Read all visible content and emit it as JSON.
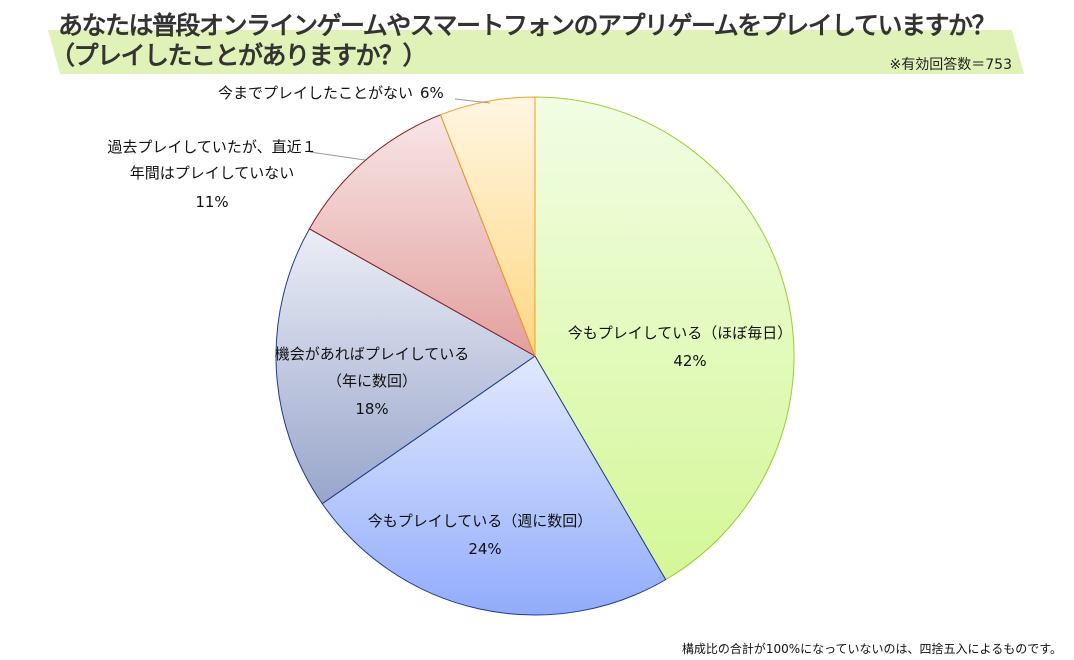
{
  "title_line1": "あなたは普段オンラインゲームやスマートフォンのアプリゲームをプレイしていますか？",
  "title_line2": "（プレイしたことがありますか？）",
  "sample_note": "※有効回答数＝753",
  "footnote": "構成比の合計が100%になっていないのは、四捨五入によるものです。",
  "chart_data": {
    "type": "pie",
    "title": "あなたは普段オンラインゲームやスマートフォンのアプリゲームをプレイしていますか？（プレイしたことがありますか？）",
    "start": "top",
    "direction": "clockwise",
    "slices": [
      {
        "label": "今もプレイしている（ほぼ毎日）",
        "value": 42,
        "pct": "42%",
        "colors": [
          "#f2fde4",
          "#d4f797"
        ],
        "stroke": "#9acd32"
      },
      {
        "label": "今もプレイしている（週に数回）",
        "value": 24,
        "pct": "24%",
        "colors": [
          "#e2e9ff",
          "#91acfb"
        ],
        "stroke": "#1f3a93"
      },
      {
        "label_lines": [
          "機会があればプレイしている",
          "（年に数回）"
        ],
        "label": "機会があればプレイしている（年に数回）",
        "value": 18,
        "pct": "18%",
        "colors": [
          "#eceef6",
          "#98a5cb"
        ],
        "stroke": "#1f3a93"
      },
      {
        "label_lines": [
          "過去プレイしていたが、直近１",
          "年間はプレイしていない"
        ],
        "label": "過去プレイしていたが、直近１年間はプレイしていない",
        "value": 11,
        "pct": "11%",
        "colors": [
          "#f8e6e6",
          "#e2a09e"
        ],
        "stroke": "#8b1a1a"
      },
      {
        "label": "今までプレイしたことがない",
        "value": 6,
        "pct": "6%",
        "colors": [
          "#fff6e2",
          "#ffd783"
        ],
        "stroke": "#f0a020"
      }
    ]
  }
}
